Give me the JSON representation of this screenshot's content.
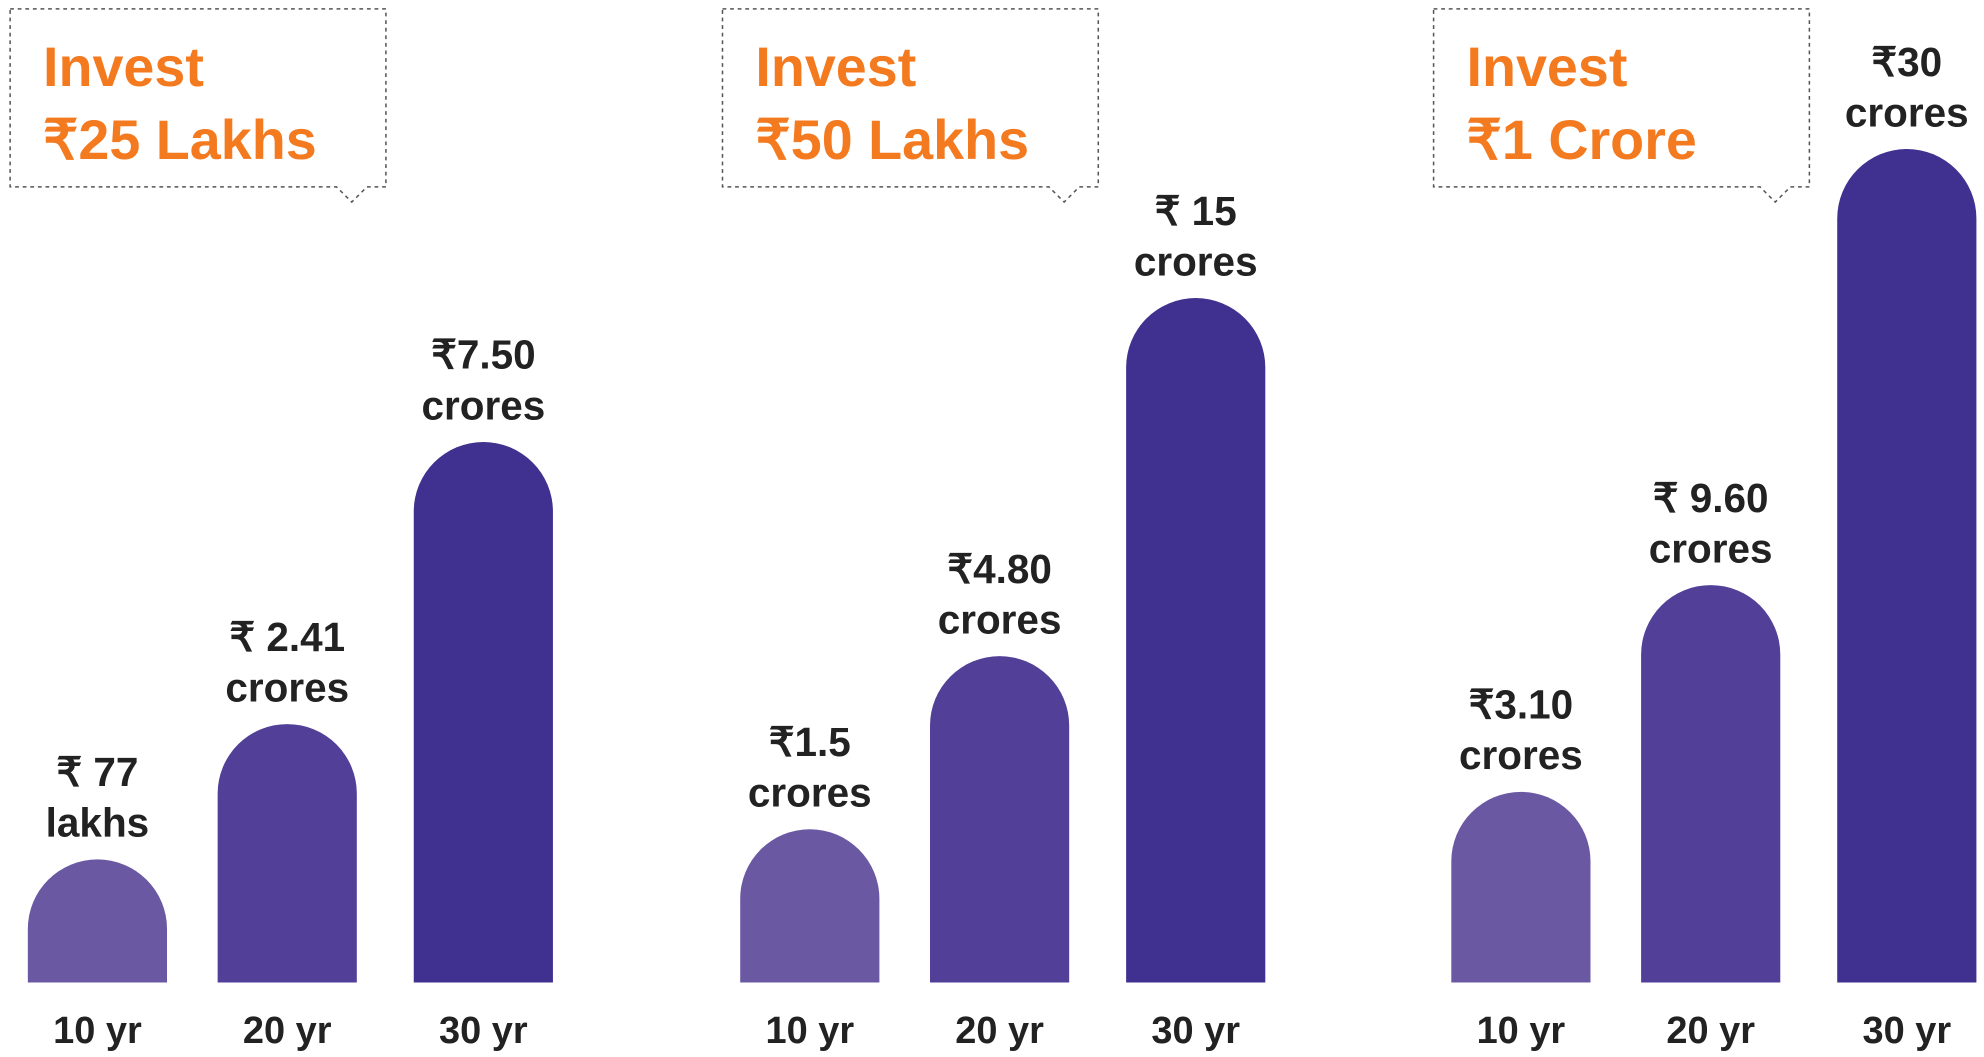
{
  "chart_data": [
    {
      "type": "bar",
      "title": "Invest",
      "subtitle": "₹25 Lakhs",
      "categories": [
        "10 yr",
        "20 yr",
        "30 yr"
      ],
      "values": [
        0.77,
        2.41,
        7.5
      ],
      "value_labels": [
        [
          "₹ 77",
          "lakhs"
        ],
        [
          "₹ 2.41",
          "crores"
        ],
        [
          "₹7.50",
          "crores"
        ]
      ],
      "colors": [
        "#6a58a3",
        "#523f98",
        "#40308f"
      ]
    },
    {
      "type": "bar",
      "title": "Invest",
      "subtitle": "₹50 Lakhs",
      "categories": [
        "10 yr",
        "20 yr",
        "30 yr"
      ],
      "values": [
        1.5,
        4.8,
        15
      ],
      "value_labels": [
        [
          "₹1.5",
          "crores"
        ],
        [
          "₹4.80",
          "crores"
        ],
        [
          "₹ 15",
          "crores"
        ]
      ],
      "colors": [
        "#6a58a3",
        "#523f98",
        "#40308f"
      ]
    },
    {
      "type": "bar",
      "title": "Invest",
      "subtitle": "₹1 Crore",
      "categories": [
        "10 yr",
        "20 yr",
        "30 yr"
      ],
      "values": [
        3.1,
        9.6,
        30
      ],
      "value_labels": [
        [
          "₹3.10",
          "crores"
        ],
        [
          "₹ 9.60",
          "crores"
        ],
        [
          "₹30",
          "crores"
        ]
      ],
      "colors": [
        "#6a58a3",
        "#523f98",
        "#40308f"
      ]
    }
  ]
}
